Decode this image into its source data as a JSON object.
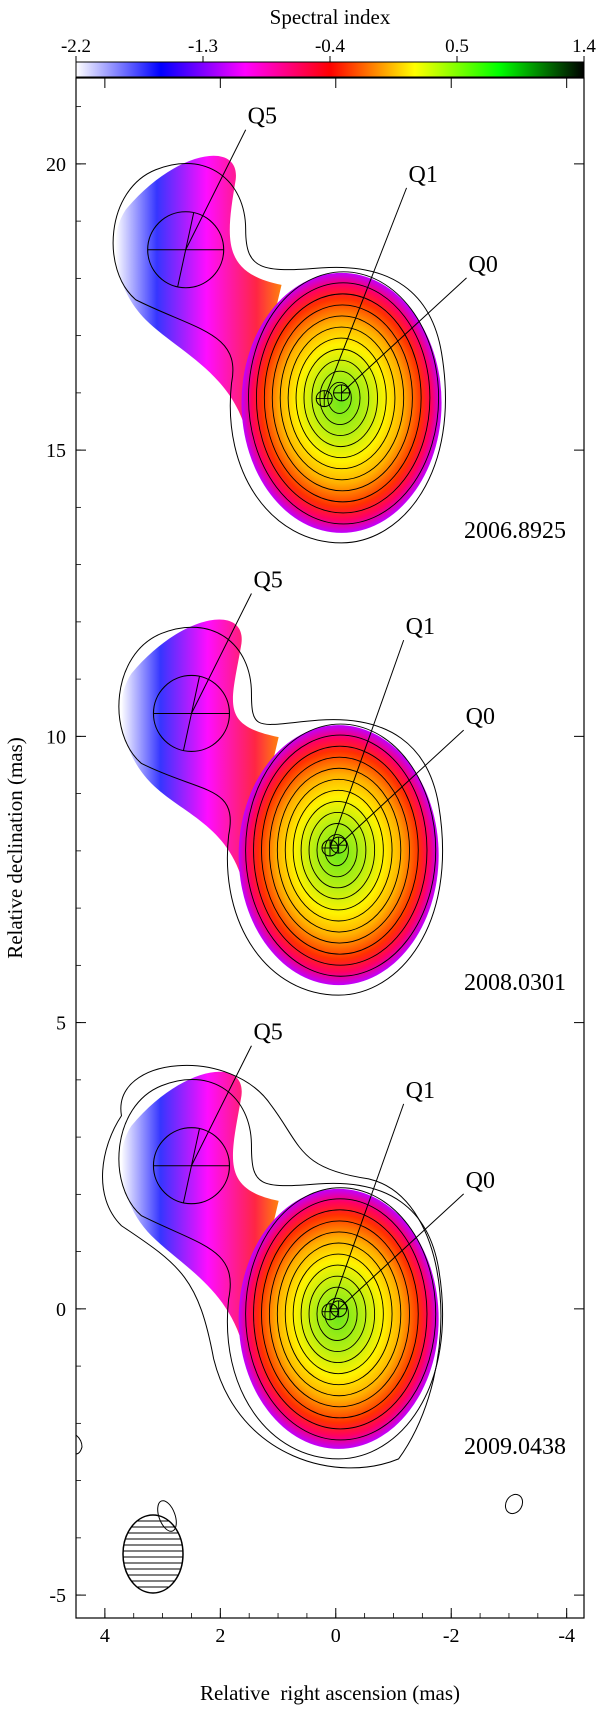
{
  "chart_data": {
    "type": "heatmap",
    "xlabel": "Relative  right ascension (mas)",
    "ylabel": "Relative declination (mas)",
    "xlim": [
      4.5,
      -4.3
    ],
    "ylim": [
      -5.4,
      21.5
    ],
    "xticks": [
      4,
      2,
      0,
      -2,
      -4
    ],
    "yticks": [
      -5,
      0,
      5,
      10,
      15,
      20
    ],
    "colorbar": {
      "label": "Spectral index",
      "range": [
        -2.2,
        1.4
      ],
      "ticks": [
        "-2.2",
        "-1.3",
        "-0.4",
        "0.5",
        "1.4"
      ],
      "colors": [
        "#ffffff",
        "#0000ff",
        "#ff00ff",
        "#ff0000",
        "#ffff00",
        "#00ff00",
        "#000000"
      ]
    },
    "panels": [
      {
        "epoch": "2006.8925",
        "components": [
          {
            "name": "Q0",
            "x": -0.1,
            "y": 16.0
          },
          {
            "name": "Q1",
            "x": 0.2,
            "y": 15.9
          },
          {
            "name": "Q5",
            "x": 2.6,
            "y": 18.5
          }
        ]
      },
      {
        "epoch": "2008.0301",
        "components": [
          {
            "name": "Q0",
            "x": -0.05,
            "y": 8.1
          },
          {
            "name": "Q1",
            "x": 0.1,
            "y": 8.05
          },
          {
            "name": "Q5",
            "x": 2.5,
            "y": 10.4
          }
        ]
      },
      {
        "epoch": "2009.0438",
        "components": [
          {
            "name": "Q0",
            "x": -0.05,
            "y": 0.0
          },
          {
            "name": "Q1",
            "x": 0.1,
            "y": -0.05
          },
          {
            "name": "Q5",
            "x": 2.5,
            "y": 2.5
          }
        ]
      }
    ]
  }
}
